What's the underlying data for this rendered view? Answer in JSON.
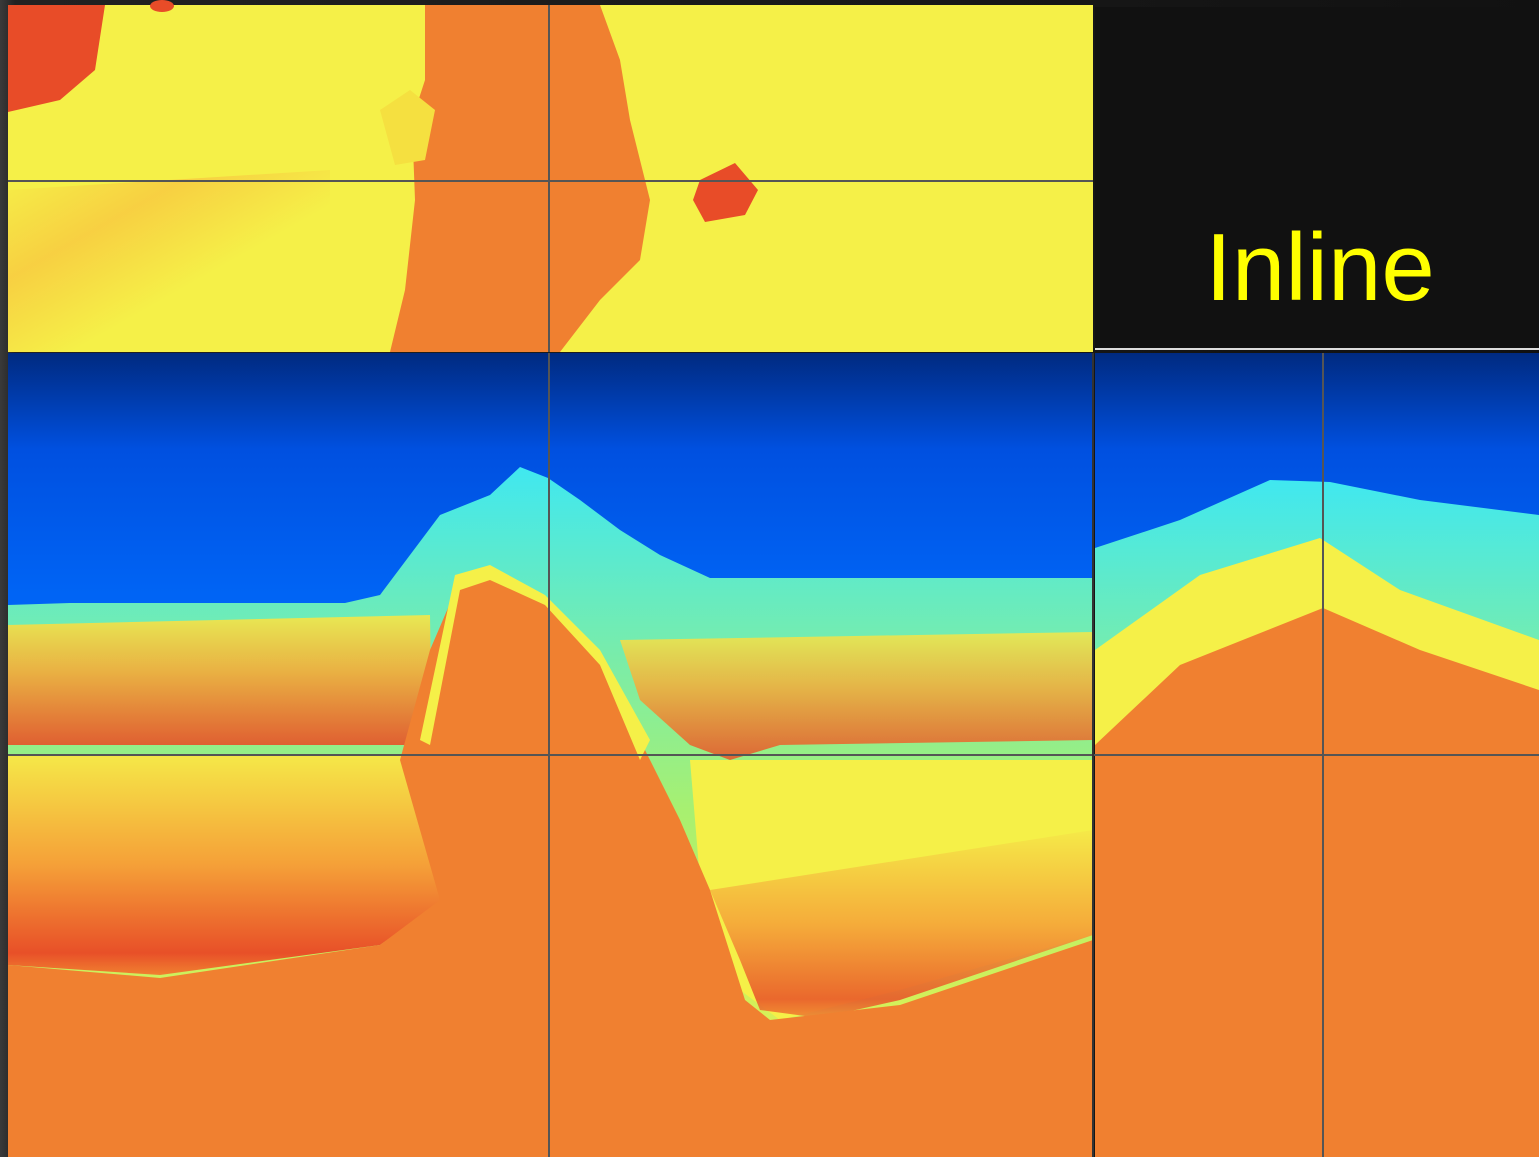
{
  "label": "Inline"
}
